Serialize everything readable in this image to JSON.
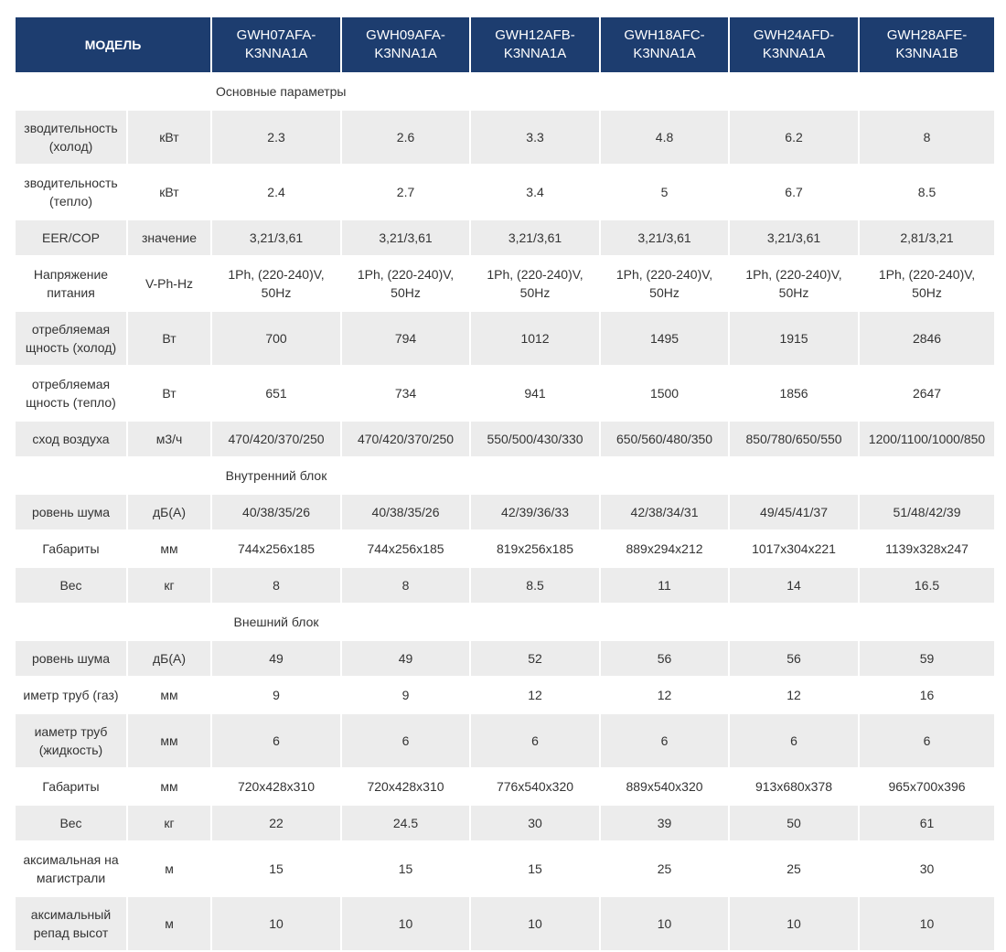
{
  "header": {
    "label": "МОДЕЛЬ",
    "models": [
      "GWH07AFA-K3NNA1A",
      "GWH09AFA-K3NNA1A",
      "GWH12AFB-K3NNA1A",
      "GWH18AFC-K3NNA1A",
      "GWH24AFD-K3NNA1A",
      "GWH28AFE-K3NNA1B"
    ]
  },
  "sections": [
    {
      "title": "Основные параметры",
      "rows": [
        {
          "param": "зводительность (холод)",
          "unit": "кВт",
          "values": [
            "2.3",
            "2.6",
            "3.3",
            "4.8",
            "6.2",
            "8"
          ]
        },
        {
          "param": "зводительность (тепло)",
          "unit": "кВт",
          "values": [
            "2.4",
            "2.7",
            "3.4",
            "5",
            "6.7",
            "8.5"
          ]
        },
        {
          "param": "EER/COP",
          "unit": "значение",
          "values": [
            "3,21/3,61",
            "3,21/3,61",
            "3,21/3,61",
            "3,21/3,61",
            "3,21/3,61",
            "2,81/3,21"
          ]
        },
        {
          "param": "Напряжение питания",
          "unit": "V-Ph-Hz",
          "values": [
            "1Ph, (220-240)V, 50Hz",
            "1Ph, (220-240)V, 50Hz",
            "1Ph, (220-240)V, 50Hz",
            "1Ph, (220-240)V, 50Hz",
            "1Ph, (220-240)V, 50Hz",
            "1Ph, (220-240)V, 50Hz"
          ]
        },
        {
          "param": "отребляемая щность (холод)",
          "unit": "Вт",
          "values": [
            "700",
            "794",
            "1012",
            "1495",
            "1915",
            "2846"
          ]
        },
        {
          "param": "отребляемая щность (тепло)",
          "unit": "Вт",
          "values": [
            "651",
            "734",
            "941",
            "1500",
            "1856",
            "2647"
          ]
        },
        {
          "param": "сход воздуха",
          "unit": "м3/ч",
          "values": [
            "470/420/370/250",
            "470/420/370/250",
            "550/500/430/330",
            "650/560/480/350",
            "850/780/650/550",
            "1200/1100/1000/850"
          ]
        }
      ]
    },
    {
      "title": "Внутренний блок",
      "rows": [
        {
          "param": "ровень шума",
          "unit": "дБ(А)",
          "values": [
            "40/38/35/26",
            "40/38/35/26",
            "42/39/36/33",
            "42/38/34/31",
            "49/45/41/37",
            "51/48/42/39"
          ]
        },
        {
          "param": "Габариты",
          "unit": "мм",
          "values": [
            "744x256x185",
            "744x256x185",
            "819x256x185",
            "889x294x212",
            "1017x304x221",
            "1139x328x247"
          ]
        },
        {
          "param": "Вес",
          "unit": "кг",
          "values": [
            "8",
            "8",
            "8.5",
            "11",
            "14",
            "16.5"
          ]
        }
      ]
    },
    {
      "title": "Внешний блок",
      "rows": [
        {
          "param": "ровень шума",
          "unit": "дБ(А)",
          "values": [
            "49",
            "49",
            "52",
            "56",
            "56",
            "59"
          ]
        },
        {
          "param": "иметр труб (газ)",
          "unit": "мм",
          "values": [
            "9",
            "9",
            "12",
            "12",
            "12",
            "16"
          ]
        },
        {
          "param": "иаметр труб (жидкость)",
          "unit": "мм",
          "values": [
            "6",
            "6",
            "6",
            "6",
            "6",
            "6"
          ]
        },
        {
          "param": "Габариты",
          "unit": "мм",
          "values": [
            "720x428x310",
            "720x428x310",
            "776x540x320",
            "889x540x320",
            "913x680x378",
            "965x700x396"
          ]
        },
        {
          "param": "Вес",
          "unit": "кг",
          "values": [
            "22",
            "24.5",
            "30",
            "39",
            "50",
            "61"
          ]
        },
        {
          "param": "аксимальная на магистрали",
          "unit": "м",
          "values": [
            "15",
            "15",
            "15",
            "25",
            "25",
            "30"
          ]
        },
        {
          "param": "аксимальный репад высот",
          "unit": "м",
          "values": [
            "10",
            "10",
            "10",
            "10",
            "10",
            "10"
          ]
        }
      ]
    }
  ]
}
